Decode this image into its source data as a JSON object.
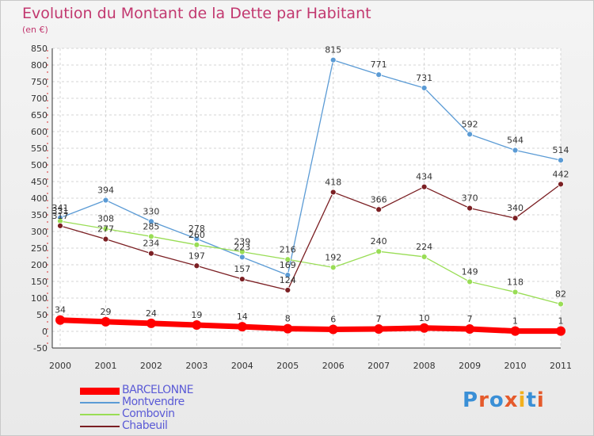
{
  "title": "Evolution du Montant de la Dette par Habitant",
  "subtitle": "(en €)",
  "logo": {
    "text": "Proxiti",
    "colors": [
      "#3a8fd6",
      "#e55a2b",
      "#3a8fd6",
      "#e55a2b",
      "#f2b01e",
      "#3a8fd6",
      "#e55a2b"
    ]
  },
  "chart_data": {
    "type": "line",
    "title": "Evolution du Montant de la Dette par Habitant",
    "subtitle": "(en €)",
    "x": [
      "2000",
      "2001",
      "2002",
      "2003",
      "2004",
      "2005",
      "2006",
      "2007",
      "2008",
      "2009",
      "2010",
      "2011"
    ],
    "ylim": [
      -50,
      850
    ],
    "yticks": [
      -50,
      0,
      50,
      100,
      150,
      200,
      250,
      300,
      350,
      400,
      450,
      500,
      550,
      600,
      650,
      700,
      750,
      800,
      850
    ],
    "grid": true,
    "legend_position": "bottom-left",
    "series": [
      {
        "name": "BARCELONNE",
        "color": "#ff0000",
        "values": [
          34,
          29,
          24,
          19,
          14,
          8,
          6,
          7,
          10,
          7,
          1,
          1
        ]
      },
      {
        "name": "Montvendre",
        "color": "#5b9bd5",
        "values": [
          341,
          394,
          330,
          278,
          223,
          169,
          815,
          771,
          731,
          592,
          544,
          514
        ]
      },
      {
        "name": "Combovin",
        "color": "#99dd55",
        "values": [
          331,
          308,
          285,
          260,
          239,
          216,
          192,
          240,
          224,
          149,
          118,
          82
        ]
      },
      {
        "name": "Chabeuil",
        "color": "#7b1f23",
        "values": [
          317,
          277,
          234,
          197,
          157,
          124,
          418,
          366,
          434,
          370,
          340,
          442
        ]
      }
    ]
  }
}
